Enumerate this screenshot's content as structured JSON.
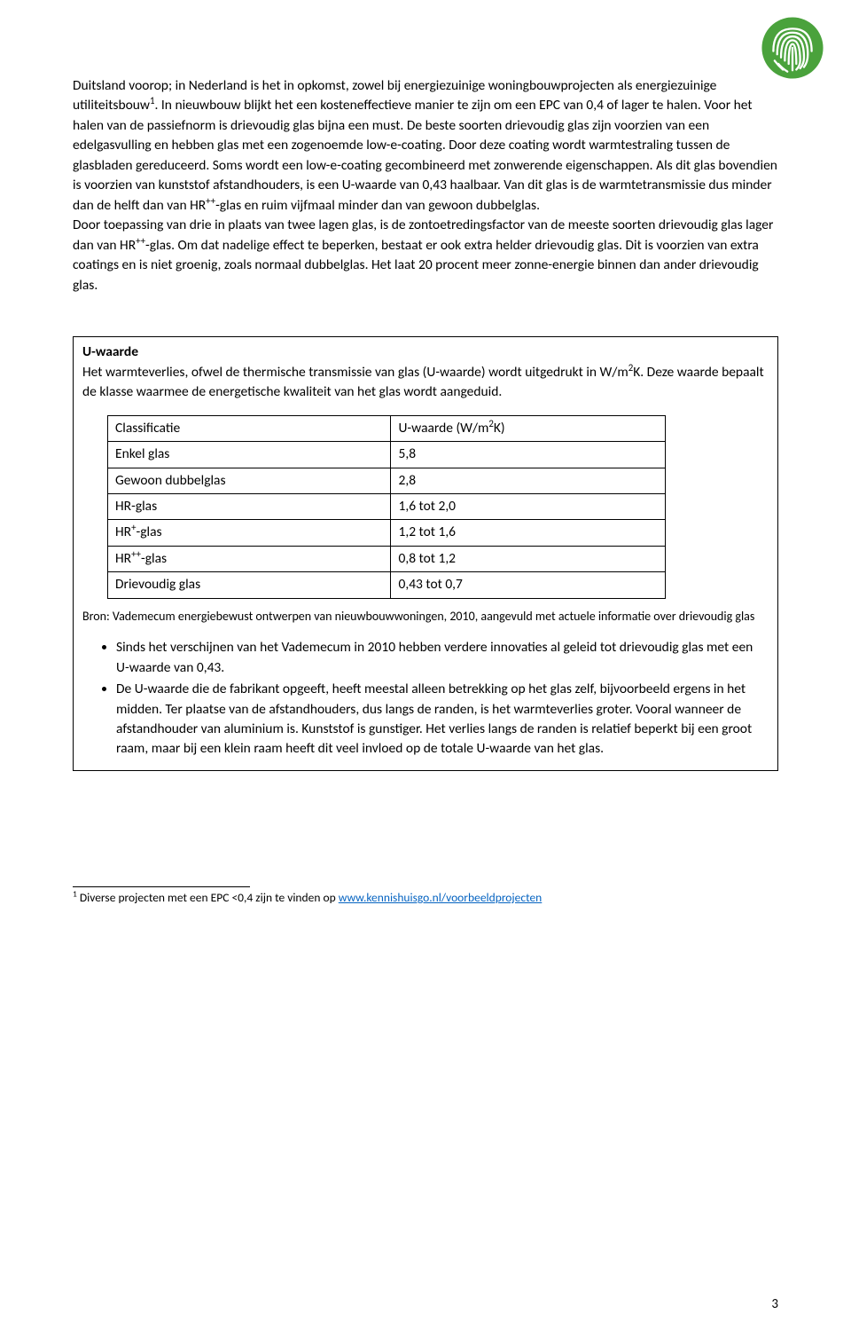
{
  "logo": {
    "stroke_color": "#4aa23c",
    "fill_color": "#ffffff"
  },
  "main": {
    "paragraph": "Duitsland voorop; in Nederland is het in opkomst, zowel bij energiezuinige woningbouwprojecten als energiezuinige utiliteitsbouw",
    "fn_marker": "1",
    "paragraph_cont": ". In nieuwbouw blijkt het een kosteneffectieve manier te zijn om een EPC van 0,4 of lager te halen. Voor het halen van de passiefnorm is drievoudig glas bijna een must. De beste soorten drievoudig glas zijn voorzien van een edelgasvulling en hebben glas met een zogenoemde low-e-coating. Door deze coating wordt warmtestraling tussen de glasbladen gereduceerd. Soms wordt een low-e-coating gecombineerd met zonwerende eigenschappen. Als dit glas bovendien is voorzien van kunststof afstandhouders, is een U-waarde van 0,43 haalbaar. Van dit glas is de warmtetransmissie dus minder dan de helft dan van HR",
    "hr_sup1": "++",
    "paragraph_cont2": "-glas en ruim vijfmaal minder dan van gewoon dubbelglas.",
    "paragraph2": "Door toepassing van drie in plaats van twee lagen glas, is de zontoetredingsfactor van de meeste soorten drievoudig glas lager dan van HR",
    "hr_sup2": "++",
    "paragraph2_cont": "-glas. Om dat nadelige effect te beperken, bestaat er ook extra helder drievoudig glas. Dit is voorzien van extra coatings en is niet groenig, zoals normaal dubbelglas. Het laat 20 procent meer zonne-energie binnen dan ander drievoudig glas."
  },
  "box": {
    "title": "U-waarde",
    "intro_a": "Het warmteverlies, ofwel de thermische transmissie van glas (U-waarde) wordt uitgedrukt in W/m",
    "intro_sup": "2",
    "intro_b": "K. Deze waarde bepaalt de klasse waarmee de energetische kwaliteit van het glas wordt aangeduid.",
    "table": {
      "headers": {
        "col1": "Classificatie",
        "col2_a": "U-waarde (W/m",
        "col2_sup": "2",
        "col2_b": "K)"
      },
      "rows": [
        {
          "c1_a": "Enkel glas",
          "c1_sup": "",
          "c1_b": "",
          "c2": "5,8"
        },
        {
          "c1_a": "Gewoon dubbelglas",
          "c1_sup": "",
          "c1_b": "",
          "c2": "2,8"
        },
        {
          "c1_a": "HR-glas",
          "c1_sup": "",
          "c1_b": "",
          "c2": "1,6 tot 2,0"
        },
        {
          "c1_a": "HR",
          "c1_sup": "+",
          "c1_b": "-glas",
          "c2": "1,2 tot 1,6"
        },
        {
          "c1_a": "HR",
          "c1_sup": "++",
          "c1_b": "-glas",
          "c2": "0,8 tot 1,2"
        },
        {
          "c1_a": "Drievoudig glas",
          "c1_sup": "",
          "c1_b": "",
          "c2": "0,43 tot 0,7"
        }
      ]
    },
    "source": "Bron: Vademecum energiebewust ontwerpen van nieuwbouwwoningen, 2010, aangevuld met actuele informatie over drievoudig glas",
    "bullets": [
      "Sinds het verschijnen van het Vademecum in 2010 hebben verdere innovaties al geleid tot drievoudig glas met een U-waarde van 0,43.",
      "De U-waarde die de fabrikant opgeeft, heeft meestal alleen betrekking op het glas zelf, bijvoorbeeld ergens in het midden. Ter plaatse van de afstandhouders, dus langs de randen, is het warmteverlies groter. Vooral wanneer de afstandhouder van aluminium is. Kunststof is gunstiger. Het verlies langs de randen is relatief beperkt bij een groot raam, maar bij een klein raam heeft dit veel invloed op de totale U-waarde van het glas."
    ]
  },
  "footnote": {
    "marker": "1",
    "text_a": " Diverse projecten met een EPC <0,4 zijn te vinden op ",
    "link_text": "www.kennishuisgo.nl/voorbeeldprojecten",
    "link_href": "http://www.kennishuisgo.nl/voorbeeldprojecten"
  },
  "page_number": "3"
}
